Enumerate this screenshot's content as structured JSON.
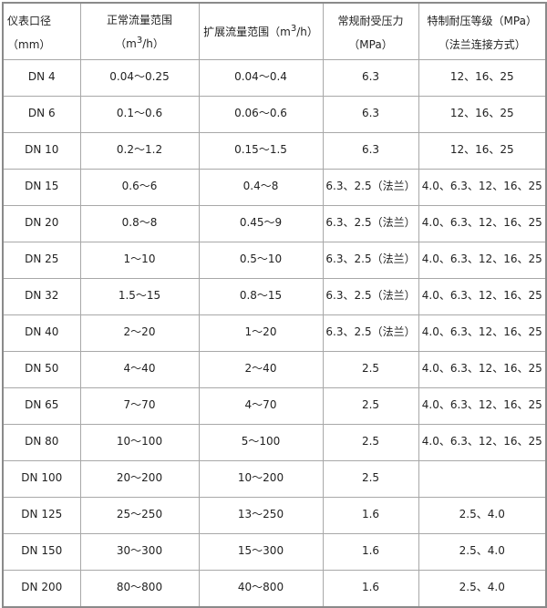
{
  "headers": {
    "diameter": "仪表口径（mm）",
    "normal_flow_prefix": "正常流量范围（m",
    "extended_flow_prefix": "扩展流量范围（m",
    "flow_sup": "3",
    "flow_suffix": "/h）",
    "pressure": "常规耐受压力（MPa）",
    "special_pressure": "特制耐压等级（MPa）（法兰连接方式）"
  },
  "rows": [
    {
      "dn": "DN 4",
      "normal": "0.04～0.25",
      "extended": "0.04～0.4",
      "pressure": "6.3",
      "special": "12、16、25"
    },
    {
      "dn": "DN 6",
      "normal": "0.1～0.6",
      "extended": "0.06～0.6",
      "pressure": "6.3",
      "special": "12、16、25"
    },
    {
      "dn": "DN 10",
      "normal": "0.2～1.2",
      "extended": "0.15～1.5",
      "pressure": "6.3",
      "special": "12、16、25"
    },
    {
      "dn": "DN 15",
      "normal": "0.6～6",
      "extended": "0.4～8",
      "pressure": "6.3、2.5（法兰）",
      "special": "4.0、6.3、12、16、25"
    },
    {
      "dn": "DN 20",
      "normal": "0.8～8",
      "extended": "0.45～9",
      "pressure": "6.3、2.5（法兰）",
      "special": "4.0、6.3、12、16、25"
    },
    {
      "dn": "DN 25",
      "normal": "1～10",
      "extended": "0.5～10",
      "pressure": "6.3、2.5（法兰）",
      "special": "4.0、6.3、12、16、25"
    },
    {
      "dn": "DN 32",
      "normal": "1.5～15",
      "extended": "0.8～15",
      "pressure": "6.3、2.5（法兰）",
      "special": "4.0、6.3、12、16、25"
    },
    {
      "dn": "DN 40",
      "normal": "2～20",
      "extended": "1～20",
      "pressure": "6.3、2.5（法兰）",
      "special": "4.0、6.3、12、16、25"
    },
    {
      "dn": "DN 50",
      "normal": "4～40",
      "extended": "2～40",
      "pressure": "2.5",
      "special": "4.0、6.3、12、16、25"
    },
    {
      "dn": "DN 65",
      "normal": "7～70",
      "extended": "4～70",
      "pressure": "2.5",
      "special": "4.0、6.3、12、16、25"
    },
    {
      "dn": "DN 80",
      "normal": "10～100",
      "extended": "5～100",
      "pressure": "2.5",
      "special": "4.0、6.3、12、16、25"
    },
    {
      "dn": "DN 100",
      "normal": "20～200",
      "extended": "10～200",
      "pressure": "2.5",
      "special": ""
    },
    {
      "dn": "DN 125",
      "normal": "25～250",
      "extended": "13～250",
      "pressure": "1.6",
      "special": "2.5、4.0"
    },
    {
      "dn": "DN 150",
      "normal": "30～300",
      "extended": "15～300",
      "pressure": "1.6",
      "special": "2.5、4.0"
    },
    {
      "dn": "DN 200",
      "normal": "80～800",
      "extended": "40～800",
      "pressure": "1.6",
      "special": "2.5、4.0"
    }
  ]
}
